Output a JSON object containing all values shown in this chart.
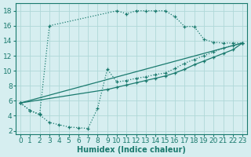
{
  "xlabel": "Humidex (Indice chaleur)",
  "xlim": [
    -0.5,
    23.5
  ],
  "ylim": [
    1.5,
    19
  ],
  "xticks": [
    0,
    1,
    2,
    3,
    4,
    5,
    6,
    7,
    8,
    9,
    10,
    11,
    12,
    13,
    14,
    15,
    16,
    17,
    18,
    19,
    20,
    21,
    22,
    23
  ],
  "yticks": [
    2,
    4,
    6,
    8,
    10,
    12,
    14,
    16,
    18
  ],
  "bg_color": "#d6eef0",
  "line_color": "#1a7a6e",
  "grid_color": "#afd8d8",
  "font_size": 6.5,
  "curve1_x": [
    0,
    1,
    2,
    3,
    10,
    11,
    12,
    13,
    14,
    15,
    16,
    17,
    18,
    19,
    20,
    21,
    22,
    23
  ],
  "curve1_y": [
    5.7,
    4.7,
    4.2,
    16.0,
    18.0,
    17.6,
    18.0,
    18.0,
    18.0,
    18.0,
    17.2,
    15.9,
    15.9,
    14.2,
    13.8,
    13.7,
    13.7,
    13.7
  ],
  "curve2_x": [
    0,
    1,
    2,
    3,
    4,
    5,
    6,
    7,
    8,
    9,
    10,
    11,
    12,
    13,
    14,
    15,
    16,
    17,
    18,
    19,
    20,
    21,
    22,
    23
  ],
  "curve2_y": [
    5.7,
    4.7,
    4.1,
    3.1,
    2.8,
    2.5,
    2.4,
    2.3,
    5.0,
    10.2,
    8.5,
    8.7,
    9.0,
    9.2,
    9.5,
    9.7,
    10.3,
    11.0,
    11.5,
    12.0,
    12.5,
    13.0,
    13.4,
    13.7
  ],
  "curve3_x": [
    0,
    23
  ],
  "curve3_y": [
    5.7,
    13.7
  ],
  "curve4_x": [
    0,
    9,
    10,
    11,
    12,
    13,
    14,
    15,
    16,
    17,
    18,
    19,
    20,
    21,
    22,
    23
  ],
  "curve4_y": [
    5.7,
    7.5,
    7.8,
    8.1,
    8.4,
    8.7,
    9.0,
    9.3,
    9.7,
    10.2,
    10.8,
    11.3,
    11.8,
    12.3,
    12.8,
    13.7
  ]
}
